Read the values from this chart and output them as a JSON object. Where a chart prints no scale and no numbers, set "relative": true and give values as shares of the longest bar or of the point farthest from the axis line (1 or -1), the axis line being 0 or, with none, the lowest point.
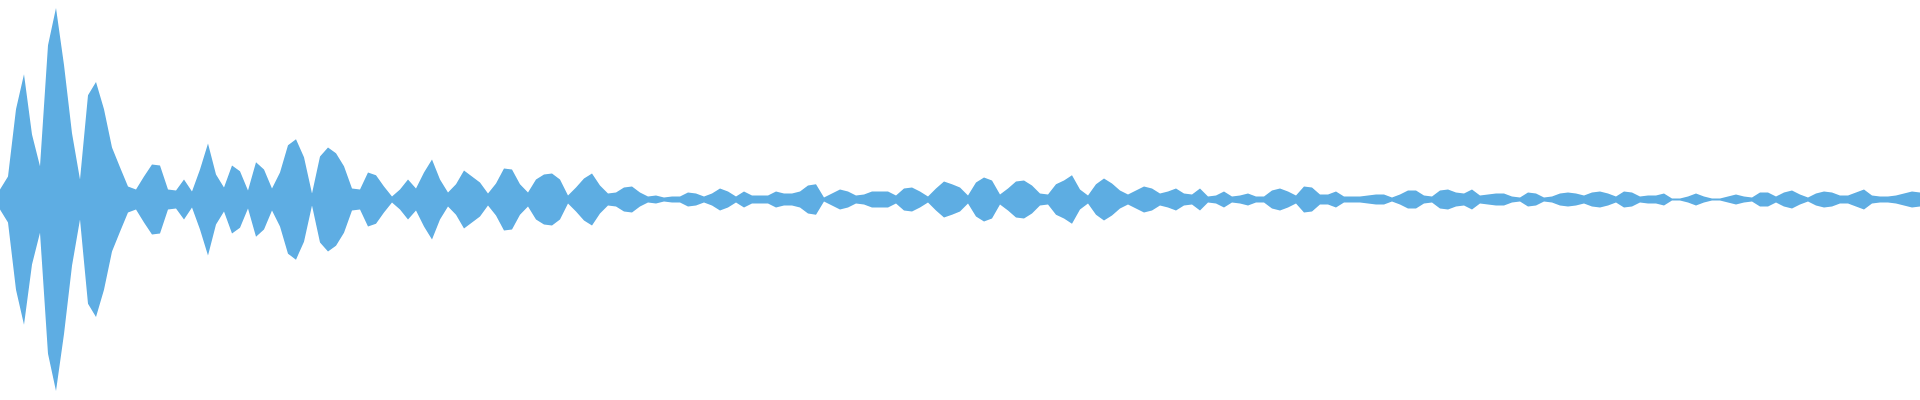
{
  "chart_data": {
    "type": "area",
    "relative": true,
    "categories": [
      null,
      null,
      null,
      null,
      null,
      null,
      null,
      null,
      null,
      null,
      null,
      null,
      null,
      null,
      null,
      null,
      null,
      null,
      null,
      null,
      null,
      null,
      null,
      null,
      null,
      null,
      null,
      null,
      null,
      null,
      null,
      null,
      null,
      null,
      null,
      null,
      null,
      null,
      null,
      null,
      null,
      null,
      null,
      null,
      null,
      null,
      null,
      null,
      null,
      null,
      null,
      null,
      null,
      null,
      null,
      null,
      null,
      null,
      null,
      null,
      null,
      null,
      null,
      null,
      null,
      null,
      null,
      null,
      null,
      null,
      null,
      null,
      null,
      null,
      null,
      null,
      null,
      null,
      null,
      null,
      null,
      null,
      null,
      null,
      null,
      null,
      null,
      null,
      null,
      null,
      null,
      null,
      null,
      null,
      null,
      null,
      null,
      null,
      null,
      null,
      null,
      null,
      null,
      null,
      null,
      null,
      null,
      null,
      null,
      null,
      null,
      null,
      null,
      null,
      null,
      null,
      null,
      null,
      null,
      null,
      null,
      null,
      null,
      null,
      null,
      null,
      null,
      null,
      null,
      null,
      null,
      null,
      null,
      null,
      null,
      null,
      null,
      null,
      null,
      null,
      null,
      null,
      null,
      null,
      null,
      null,
      null,
      null,
      null,
      null,
      null,
      null,
      null,
      null,
      null,
      null,
      null,
      null,
      null,
      null,
      null,
      null,
      null,
      null,
      null,
      null,
      null,
      null,
      null,
      null,
      null,
      null,
      null,
      null,
      null,
      null,
      null,
      null,
      null,
      null,
      null,
      null,
      null,
      null,
      null,
      null,
      null,
      null,
      null,
      null,
      null,
      null,
      null,
      null,
      null,
      null,
      null,
      null,
      null,
      null,
      null,
      null,
      null,
      null,
      null,
      null,
      null,
      null,
      null,
      null,
      null,
      null,
      null,
      null,
      null,
      null,
      null,
      null,
      null,
      null,
      null,
      null,
      null,
      null,
      null,
      null,
      null,
      null,
      null,
      null,
      null,
      null,
      null,
      null,
      null,
      null,
      null,
      null,
      null,
      null,
      null
    ],
    "series": [
      {
        "color": "#5dade2",
        "values": [
          0.052,
          0.12,
          0.471,
          0.654,
          0.34,
          0.173,
          0.806,
          1,
          0.702,
          0.346,
          0.105,
          0.545,
          0.613,
          0.471,
          0.272,
          0.168,
          0.068,
          0.052,
          0.12,
          0.183,
          0.178,
          0.052,
          0.047,
          0.105,
          0.042,
          0.157,
          0.293,
          0.131,
          0.063,
          0.178,
          0.147,
          0.047,
          0.194,
          0.157,
          0.058,
          0.141,
          0.283,
          0.314,
          0.22,
          0.031,
          0.225,
          0.272,
          0.241,
          0.173,
          0.058,
          0.052,
          0.141,
          0.126,
          0.068,
          0.016,
          0.052,
          0.105,
          0.058,
          0.141,
          0.209,
          0.105,
          0.037,
          0.079,
          0.152,
          0.12,
          0.089,
          0.031,
          0.084,
          0.162,
          0.157,
          0.079,
          0.037,
          0.105,
          0.131,
          0.136,
          0.105,
          0.021,
          0.063,
          0.11,
          0.136,
          0.073,
          0.031,
          0.037,
          0.063,
          0.068,
          0.037,
          0.016,
          0.021,
          0.01,
          0.016,
          0.016,
          0.037,
          0.031,
          0.016,
          0.031,
          0.058,
          0.042,
          0.016,
          0.042,
          0.021,
          0.021,
          0.021,
          0.042,
          0.031,
          0.031,
          0.042,
          0.073,
          0.079,
          0.01,
          0.031,
          0.052,
          0.042,
          0.021,
          0.026,
          0.042,
          0.042,
          0.042,
          0.021,
          0.058,
          0.063,
          0.042,
          0.016,
          0.058,
          0.094,
          0.079,
          0.063,
          0.021,
          0.089,
          0.115,
          0.099,
          0.026,
          0.058,
          0.094,
          0.099,
          0.073,
          0.031,
          0.026,
          0.079,
          0.099,
          0.126,
          0.052,
          0.021,
          0.079,
          0.11,
          0.084,
          0.047,
          0.026,
          0.047,
          0.068,
          0.058,
          0.031,
          0.042,
          0.058,
          0.031,
          0.026,
          0.058,
          0.016,
          0.021,
          0.042,
          0.016,
          0.021,
          0.031,
          0.016,
          0.016,
          0.047,
          0.058,
          0.042,
          0.021,
          0.068,
          0.063,
          0.026,
          0.026,
          0.042,
          0.016,
          0.016,
          0.016,
          0.021,
          0.026,
          0.026,
          0.01,
          0.026,
          0.047,
          0.047,
          0.021,
          0.016,
          0.047,
          0.052,
          0.037,
          0.031,
          0.052,
          0.021,
          0.026,
          0.031,
          0.031,
          0.016,
          0.01,
          0.037,
          0.031,
          0.01,
          0.016,
          0.031,
          0.037,
          0.031,
          0.021,
          0.037,
          0.042,
          0.031,
          0.016,
          0.042,
          0.037,
          0.016,
          0.021,
          0.021,
          0.031,
          0.005,
          0.005,
          0.016,
          0.031,
          0.016,
          0.005,
          0.005,
          0.016,
          0.026,
          0.016,
          0.01,
          0.037,
          0.037,
          0.016,
          0.037,
          0.047,
          0.026,
          0.01,
          0.031,
          0.042,
          0.037,
          0.021,
          0.021,
          0.037,
          0.052,
          0.021,
          0.016,
          0.016,
          0.021,
          0.031,
          0.042,
          0.037
        ]
      },
      {
        "color": "#5eade3",
        "values": [
          -0.052,
          -0.12,
          -0.471,
          -0.654,
          -0.34,
          -0.173,
          -0.806,
          -1,
          -0.702,
          -0.346,
          -0.105,
          -0.545,
          -0.613,
          -0.471,
          -0.272,
          -0.168,
          -0.068,
          -0.052,
          -0.12,
          -0.183,
          -0.178,
          -0.052,
          -0.047,
          -0.105,
          -0.042,
          -0.157,
          -0.293,
          -0.131,
          -0.063,
          -0.178,
          -0.147,
          -0.047,
          -0.194,
          -0.157,
          -0.058,
          -0.141,
          -0.283,
          -0.314,
          -0.22,
          -0.031,
          -0.225,
          -0.272,
          -0.241,
          -0.173,
          -0.058,
          -0.052,
          -0.141,
          -0.126,
          -0.068,
          -0.016,
          -0.052,
          -0.105,
          -0.058,
          -0.141,
          -0.209,
          -0.105,
          -0.037,
          -0.079,
          -0.152,
          -0.12,
          -0.089,
          -0.031,
          -0.084,
          -0.162,
          -0.157,
          -0.079,
          -0.037,
          -0.105,
          -0.131,
          -0.136,
          -0.105,
          -0.021,
          -0.063,
          -0.11,
          -0.136,
          -0.073,
          -0.031,
          -0.037,
          -0.063,
          -0.068,
          -0.037,
          -0.016,
          -0.021,
          -0.01,
          -0.016,
          -0.016,
          -0.037,
          -0.031,
          -0.016,
          -0.031,
          -0.058,
          -0.042,
          -0.016,
          -0.042,
          -0.021,
          -0.021,
          -0.021,
          -0.042,
          -0.031,
          -0.031,
          -0.042,
          -0.073,
          -0.079,
          -0.01,
          -0.031,
          -0.052,
          -0.042,
          -0.021,
          -0.026,
          -0.042,
          -0.042,
          -0.042,
          -0.021,
          -0.058,
          -0.063,
          -0.042,
          -0.016,
          -0.058,
          -0.094,
          -0.079,
          -0.063,
          -0.021,
          -0.089,
          -0.115,
          -0.099,
          -0.026,
          -0.058,
          -0.094,
          -0.099,
          -0.073,
          -0.031,
          -0.026,
          -0.079,
          -0.099,
          -0.126,
          -0.052,
          -0.021,
          -0.079,
          -0.11,
          -0.084,
          -0.047,
          -0.026,
          -0.047,
          -0.068,
          -0.058,
          -0.031,
          -0.042,
          -0.058,
          -0.031,
          -0.026,
          -0.058,
          -0.016,
          -0.021,
          -0.042,
          -0.016,
          -0.021,
          -0.031,
          -0.016,
          -0.016,
          -0.047,
          -0.058,
          -0.042,
          -0.021,
          -0.068,
          -0.063,
          -0.026,
          -0.026,
          -0.042,
          -0.016,
          -0.016,
          -0.016,
          -0.021,
          -0.026,
          -0.026,
          -0.01,
          -0.026,
          -0.047,
          -0.047,
          -0.021,
          -0.016,
          -0.047,
          -0.052,
          -0.037,
          -0.031,
          -0.052,
          -0.021,
          -0.026,
          -0.031,
          -0.031,
          -0.016,
          -0.01,
          -0.037,
          -0.031,
          -0.01,
          -0.016,
          -0.031,
          -0.037,
          -0.031,
          -0.021,
          -0.037,
          -0.042,
          -0.031,
          -0.016,
          -0.042,
          -0.037,
          -0.016,
          -0.021,
          -0.021,
          -0.031,
          -0.005,
          -0.005,
          -0.016,
          -0.031,
          -0.016,
          -0.005,
          -0.005,
          -0.016,
          -0.026,
          -0.016,
          -0.01,
          -0.037,
          -0.037,
          -0.016,
          -0.037,
          -0.047,
          -0.026,
          -0.01,
          -0.031,
          -0.042,
          -0.037,
          -0.021,
          -0.021,
          -0.037,
          -0.052,
          -0.021,
          -0.016,
          -0.016,
          -0.021,
          -0.031,
          -0.042,
          -0.037
        ]
      }
    ],
    "ref_lines": [
      {
        "axis": "y",
        "value": 0,
        "color": "#5dade2"
      }
    ]
  }
}
